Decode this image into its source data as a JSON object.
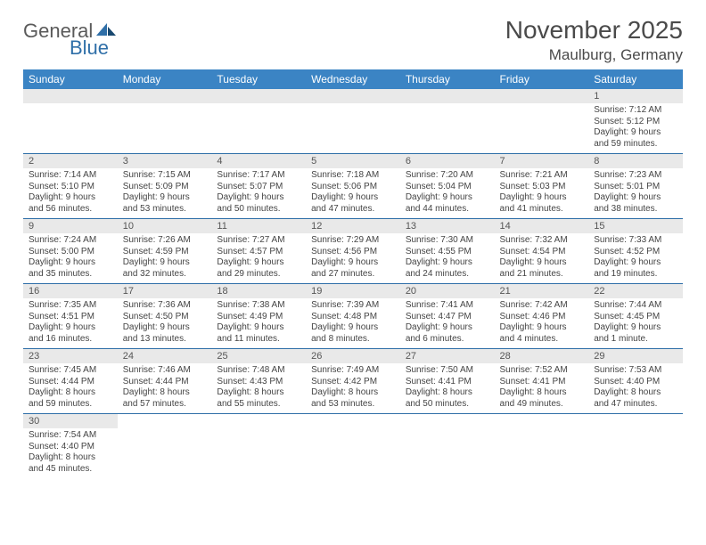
{
  "logo": {
    "general": "General",
    "blue": "Blue"
  },
  "title": "November 2025",
  "location": "Maulburg, Germany",
  "colors": {
    "header_bg": "#3b84c4",
    "header_text": "#ffffff",
    "row_divider": "#2f6fa8",
    "daynum_bg": "#e9e9e9",
    "text": "#444444"
  },
  "weekdays": [
    "Sunday",
    "Monday",
    "Tuesday",
    "Wednesday",
    "Thursday",
    "Friday",
    "Saturday"
  ],
  "weeks": [
    [
      null,
      null,
      null,
      null,
      null,
      null,
      {
        "d": "1",
        "sr": "Sunrise: 7:12 AM",
        "ss": "Sunset: 5:12 PM",
        "dl1": "Daylight: 9 hours",
        "dl2": "and 59 minutes."
      }
    ],
    [
      {
        "d": "2",
        "sr": "Sunrise: 7:14 AM",
        "ss": "Sunset: 5:10 PM",
        "dl1": "Daylight: 9 hours",
        "dl2": "and 56 minutes."
      },
      {
        "d": "3",
        "sr": "Sunrise: 7:15 AM",
        "ss": "Sunset: 5:09 PM",
        "dl1": "Daylight: 9 hours",
        "dl2": "and 53 minutes."
      },
      {
        "d": "4",
        "sr": "Sunrise: 7:17 AM",
        "ss": "Sunset: 5:07 PM",
        "dl1": "Daylight: 9 hours",
        "dl2": "and 50 minutes."
      },
      {
        "d": "5",
        "sr": "Sunrise: 7:18 AM",
        "ss": "Sunset: 5:06 PM",
        "dl1": "Daylight: 9 hours",
        "dl2": "and 47 minutes."
      },
      {
        "d": "6",
        "sr": "Sunrise: 7:20 AM",
        "ss": "Sunset: 5:04 PM",
        "dl1": "Daylight: 9 hours",
        "dl2": "and 44 minutes."
      },
      {
        "d": "7",
        "sr": "Sunrise: 7:21 AM",
        "ss": "Sunset: 5:03 PM",
        "dl1": "Daylight: 9 hours",
        "dl2": "and 41 minutes."
      },
      {
        "d": "8",
        "sr": "Sunrise: 7:23 AM",
        "ss": "Sunset: 5:01 PM",
        "dl1": "Daylight: 9 hours",
        "dl2": "and 38 minutes."
      }
    ],
    [
      {
        "d": "9",
        "sr": "Sunrise: 7:24 AM",
        "ss": "Sunset: 5:00 PM",
        "dl1": "Daylight: 9 hours",
        "dl2": "and 35 minutes."
      },
      {
        "d": "10",
        "sr": "Sunrise: 7:26 AM",
        "ss": "Sunset: 4:59 PM",
        "dl1": "Daylight: 9 hours",
        "dl2": "and 32 minutes."
      },
      {
        "d": "11",
        "sr": "Sunrise: 7:27 AM",
        "ss": "Sunset: 4:57 PM",
        "dl1": "Daylight: 9 hours",
        "dl2": "and 29 minutes."
      },
      {
        "d": "12",
        "sr": "Sunrise: 7:29 AM",
        "ss": "Sunset: 4:56 PM",
        "dl1": "Daylight: 9 hours",
        "dl2": "and 27 minutes."
      },
      {
        "d": "13",
        "sr": "Sunrise: 7:30 AM",
        "ss": "Sunset: 4:55 PM",
        "dl1": "Daylight: 9 hours",
        "dl2": "and 24 minutes."
      },
      {
        "d": "14",
        "sr": "Sunrise: 7:32 AM",
        "ss": "Sunset: 4:54 PM",
        "dl1": "Daylight: 9 hours",
        "dl2": "and 21 minutes."
      },
      {
        "d": "15",
        "sr": "Sunrise: 7:33 AM",
        "ss": "Sunset: 4:52 PM",
        "dl1": "Daylight: 9 hours",
        "dl2": "and 19 minutes."
      }
    ],
    [
      {
        "d": "16",
        "sr": "Sunrise: 7:35 AM",
        "ss": "Sunset: 4:51 PM",
        "dl1": "Daylight: 9 hours",
        "dl2": "and 16 minutes."
      },
      {
        "d": "17",
        "sr": "Sunrise: 7:36 AM",
        "ss": "Sunset: 4:50 PM",
        "dl1": "Daylight: 9 hours",
        "dl2": "and 13 minutes."
      },
      {
        "d": "18",
        "sr": "Sunrise: 7:38 AM",
        "ss": "Sunset: 4:49 PM",
        "dl1": "Daylight: 9 hours",
        "dl2": "and 11 minutes."
      },
      {
        "d": "19",
        "sr": "Sunrise: 7:39 AM",
        "ss": "Sunset: 4:48 PM",
        "dl1": "Daylight: 9 hours",
        "dl2": "and 8 minutes."
      },
      {
        "d": "20",
        "sr": "Sunrise: 7:41 AM",
        "ss": "Sunset: 4:47 PM",
        "dl1": "Daylight: 9 hours",
        "dl2": "and 6 minutes."
      },
      {
        "d": "21",
        "sr": "Sunrise: 7:42 AM",
        "ss": "Sunset: 4:46 PM",
        "dl1": "Daylight: 9 hours",
        "dl2": "and 4 minutes."
      },
      {
        "d": "22",
        "sr": "Sunrise: 7:44 AM",
        "ss": "Sunset: 4:45 PM",
        "dl1": "Daylight: 9 hours",
        "dl2": "and 1 minute."
      }
    ],
    [
      {
        "d": "23",
        "sr": "Sunrise: 7:45 AM",
        "ss": "Sunset: 4:44 PM",
        "dl1": "Daylight: 8 hours",
        "dl2": "and 59 minutes."
      },
      {
        "d": "24",
        "sr": "Sunrise: 7:46 AM",
        "ss": "Sunset: 4:44 PM",
        "dl1": "Daylight: 8 hours",
        "dl2": "and 57 minutes."
      },
      {
        "d": "25",
        "sr": "Sunrise: 7:48 AM",
        "ss": "Sunset: 4:43 PM",
        "dl1": "Daylight: 8 hours",
        "dl2": "and 55 minutes."
      },
      {
        "d": "26",
        "sr": "Sunrise: 7:49 AM",
        "ss": "Sunset: 4:42 PM",
        "dl1": "Daylight: 8 hours",
        "dl2": "and 53 minutes."
      },
      {
        "d": "27",
        "sr": "Sunrise: 7:50 AM",
        "ss": "Sunset: 4:41 PM",
        "dl1": "Daylight: 8 hours",
        "dl2": "and 50 minutes."
      },
      {
        "d": "28",
        "sr": "Sunrise: 7:52 AM",
        "ss": "Sunset: 4:41 PM",
        "dl1": "Daylight: 8 hours",
        "dl2": "and 49 minutes."
      },
      {
        "d": "29",
        "sr": "Sunrise: 7:53 AM",
        "ss": "Sunset: 4:40 PM",
        "dl1": "Daylight: 8 hours",
        "dl2": "and 47 minutes."
      }
    ],
    [
      {
        "d": "30",
        "sr": "Sunrise: 7:54 AM",
        "ss": "Sunset: 4:40 PM",
        "dl1": "Daylight: 8 hours",
        "dl2": "and 45 minutes."
      },
      null,
      null,
      null,
      null,
      null,
      null
    ]
  ]
}
